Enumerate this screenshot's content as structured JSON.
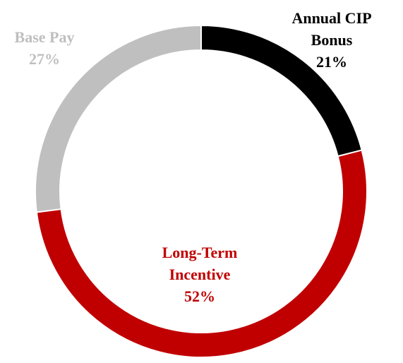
{
  "chart_data": {
    "type": "donut",
    "categories": [
      "Annual CIP Bonus",
      "Long-Term Incentive",
      "Base Pay"
    ],
    "values": [
      21,
      52,
      27
    ],
    "value_labels": [
      "21%",
      "52%",
      "27%"
    ],
    "colors": [
      "#000000",
      "#c00000",
      "#bfbfbf"
    ]
  }
}
